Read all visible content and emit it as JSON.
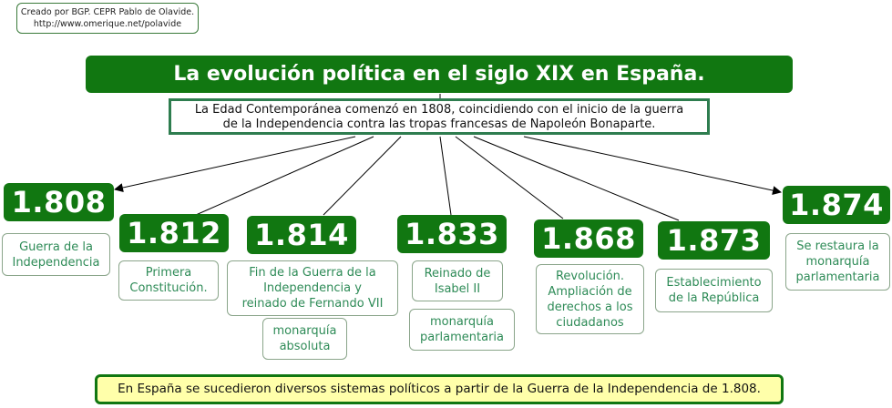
{
  "credit": {
    "line1": "Creado por BGP. CEPR Pablo de Olavide.",
    "line2": "http://www.omerique.net/polavide"
  },
  "title": "La evolución política en el siglo XIX en España.",
  "intro": {
    "line1": "La Edad Contemporánea comenzó en 1808, coincidiendo con el inicio de la guerra",
    "line2": "de la Independencia contra las tropas francesas de Napoleón Bonaparte."
  },
  "years": [
    {
      "year": "1.808",
      "desc": [
        "Guerra de la",
        "Independencia"
      ]
    },
    {
      "year": "1.812",
      "desc": [
        "Primera",
        "Constitución."
      ]
    },
    {
      "year": "1.814",
      "desc": [
        "Fin de la Guerra de la",
        "Independencia y",
        "reinado de Fernando VII"
      ],
      "desc2": [
        "monarquía",
        "absoluta"
      ]
    },
    {
      "year": "1.833",
      "desc": [
        "Reinado de",
        "Isabel II"
      ],
      "desc2": [
        "monarquía",
        "parlamentaria"
      ]
    },
    {
      "year": "1.868",
      "desc": [
        "Revolución.",
        "Ampliación de",
        "derechos a los",
        "ciudadanos"
      ]
    },
    {
      "year": "1.873",
      "desc": [
        "Establecimiento",
        "de la República"
      ]
    },
    {
      "year": "1.874",
      "desc": [
        "Se restaura la",
        "monarquía",
        "parlamentaria"
      ]
    }
  ],
  "bottom": "En España se sucedieron diversos sistemas políticos a partir de la Guerra de la Independencia de 1.808."
}
